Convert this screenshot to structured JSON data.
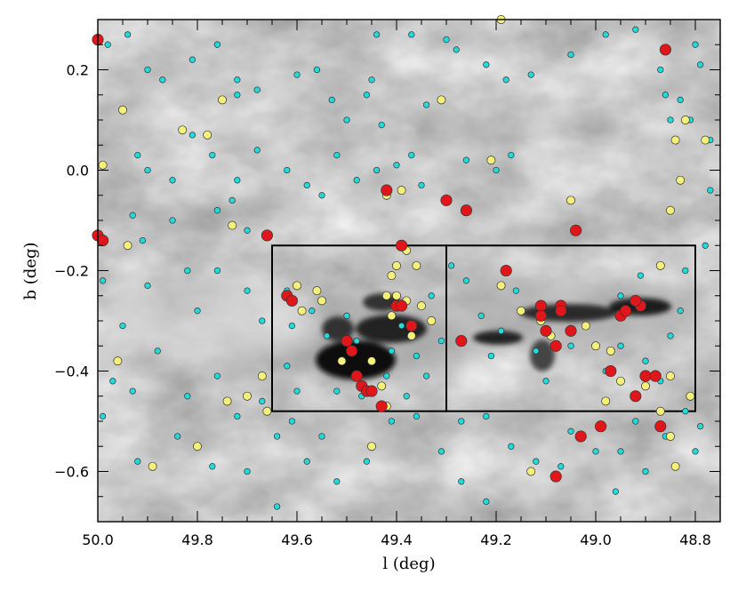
{
  "chart_data": {
    "type": "scatter",
    "title": "",
    "xlabel": "l (deg)",
    "ylabel": "b (deg)",
    "xlim": [
      50.0,
      48.75
    ],
    "ylim": [
      -0.7,
      0.3
    ],
    "x_ticks": [
      50.0,
      49.8,
      49.6,
      49.4,
      49.2,
      49.0,
      48.8
    ],
    "x_tick_labels": [
      "50.0",
      "49.8",
      "49.6",
      "49.4",
      "49.2",
      "49.0",
      "48.8"
    ],
    "y_ticks": [
      0.2,
      0.0,
      -0.2,
      -0.4,
      -0.6
    ],
    "y_tick_labels": [
      "0.2",
      "0.0",
      "−0.2",
      "−0.4",
      "−0.6"
    ],
    "background": "greyscale dust emission map",
    "boxes": [
      {
        "l_min": 49.3,
        "l_max": 49.65,
        "b_min": -0.48,
        "b_max": -0.15
      },
      {
        "l_min": 48.8,
        "l_max": 49.3,
        "b_min": -0.48,
        "b_max": -0.15
      }
    ],
    "series": [
      {
        "name": "cyan sources",
        "color": "#22dada",
        "size": "small",
        "points": [
          [
            49.98,
            0.25
          ],
          [
            49.94,
            0.27
          ],
          [
            49.9,
            0.2
          ],
          [
            49.87,
            0.18
          ],
          [
            49.81,
            0.22
          ],
          [
            49.76,
            0.25
          ],
          [
            49.72,
            0.18
          ],
          [
            49.68,
            0.16
          ],
          [
            49.72,
            0.15
          ],
          [
            49.6,
            0.19
          ],
          [
            49.56,
            0.2
          ],
          [
            49.53,
            0.14
          ],
          [
            49.44,
            0.27
          ],
          [
            49.45,
            0.18
          ],
          [
            49.46,
            0.15
          ],
          [
            49.5,
            0.1
          ],
          [
            49.43,
            0.09
          ],
          [
            49.34,
            0.13
          ],
          [
            49.37,
            0.27
          ],
          [
            49.3,
            0.26
          ],
          [
            49.28,
            0.24
          ],
          [
            49.22,
            0.21
          ],
          [
            49.18,
            0.18
          ],
          [
            49.13,
            0.19
          ],
          [
            49.05,
            0.23
          ],
          [
            48.98,
            0.27
          ],
          [
            48.92,
            0.28
          ],
          [
            48.87,
            0.2
          ],
          [
            48.86,
            0.15
          ],
          [
            48.83,
            0.14
          ],
          [
            48.8,
            0.25
          ],
          [
            48.79,
            0.21
          ],
          [
            48.85,
            0.1
          ],
          [
            48.81,
            0.1
          ],
          [
            48.77,
            0.06
          ],
          [
            49.92,
            0.03
          ],
          [
            49.9,
            0.0
          ],
          [
            49.85,
            -0.02
          ],
          [
            49.81,
            0.07
          ],
          [
            49.77,
            0.03
          ],
          [
            49.72,
            -0.02
          ],
          [
            49.68,
            0.04
          ],
          [
            49.62,
            0.0
          ],
          [
            49.58,
            -0.03
          ],
          [
            49.55,
            -0.05
          ],
          [
            49.52,
            0.03
          ],
          [
            49.48,
            -0.02
          ],
          [
            49.44,
            0.0
          ],
          [
            49.4,
            0.01
          ],
          [
            49.37,
            0.03
          ],
          [
            49.35,
            -0.03
          ],
          [
            49.26,
            0.02
          ],
          [
            49.2,
            0.0
          ],
          [
            49.17,
            0.03
          ],
          [
            49.93,
            -0.09
          ],
          [
            49.91,
            -0.14
          ],
          [
            49.85,
            -0.1
          ],
          [
            49.76,
            -0.08
          ],
          [
            49.7,
            -0.12
          ],
          [
            49.66,
            -0.13
          ],
          [
            49.73,
            -0.06
          ],
          [
            49.99,
            -0.22
          ],
          [
            49.9,
            -0.23
          ],
          [
            49.82,
            -0.2
          ],
          [
            49.76,
            -0.2
          ],
          [
            49.7,
            -0.24
          ],
          [
            49.8,
            -0.28
          ],
          [
            49.67,
            -0.3
          ],
          [
            49.62,
            -0.24
          ],
          [
            49.95,
            -0.31
          ],
          [
            49.97,
            -0.42
          ],
          [
            49.99,
            -0.49
          ],
          [
            49.93,
            -0.44
          ],
          [
            49.88,
            -0.36
          ],
          [
            49.82,
            -0.45
          ],
          [
            49.76,
            -0.41
          ],
          [
            49.72,
            -0.49
          ],
          [
            49.67,
            -0.46
          ],
          [
            49.64,
            -0.53
          ],
          [
            49.61,
            -0.5
          ],
          [
            49.55,
            -0.53
          ],
          [
            49.58,
            -0.58
          ],
          [
            49.52,
            -0.62
          ],
          [
            49.46,
            -0.58
          ],
          [
            49.41,
            -0.5
          ],
          [
            49.36,
            -0.49
          ],
          [
            49.31,
            -0.56
          ],
          [
            49.27,
            -0.5
          ],
          [
            49.22,
            -0.49
          ],
          [
            49.17,
            -0.55
          ],
          [
            49.12,
            -0.58
          ],
          [
            49.07,
            -0.59
          ],
          [
            49.05,
            -0.52
          ],
          [
            49.0,
            -0.56
          ],
          [
            48.95,
            -0.56
          ],
          [
            48.92,
            -0.5
          ],
          [
            48.86,
            -0.53
          ],
          [
            48.82,
            -0.48
          ],
          [
            48.8,
            -0.56
          ],
          [
            48.79,
            -0.51
          ],
          [
            49.92,
            -0.58
          ],
          [
            49.84,
            -0.53
          ],
          [
            49.77,
            -0.59
          ],
          [
            49.7,
            -0.6
          ],
          [
            49.64,
            -0.67
          ],
          [
            49.27,
            -0.62
          ],
          [
            49.22,
            -0.66
          ],
          [
            48.96,
            -0.64
          ],
          [
            48.9,
            -0.6
          ],
          [
            49.61,
            -0.31
          ],
          [
            49.57,
            -0.28
          ],
          [
            49.54,
            -0.33
          ],
          [
            49.5,
            -0.29
          ],
          [
            49.48,
            -0.34
          ],
          [
            49.45,
            -0.38
          ],
          [
            49.41,
            -0.36
          ],
          [
            49.39,
            -0.31
          ],
          [
            49.36,
            -0.37
          ],
          [
            49.33,
            -0.25
          ],
          [
            49.31,
            -0.34
          ],
          [
            49.52,
            -0.44
          ],
          [
            49.47,
            -0.45
          ],
          [
            49.42,
            -0.41
          ],
          [
            49.38,
            -0.45
          ],
          [
            49.34,
            -0.41
          ],
          [
            49.6,
            -0.44
          ],
          [
            49.62,
            -0.39
          ],
          [
            49.29,
            -0.19
          ],
          [
            49.26,
            -0.22
          ],
          [
            49.23,
            -0.29
          ],
          [
            49.21,
            -0.37
          ],
          [
            49.19,
            -0.32
          ],
          [
            49.16,
            -0.24
          ],
          [
            49.12,
            -0.36
          ],
          [
            49.1,
            -0.42
          ],
          [
            49.05,
            -0.35
          ],
          [
            49.02,
            -0.31
          ],
          [
            48.98,
            -0.4
          ],
          [
            48.95,
            -0.35
          ],
          [
            48.9,
            -0.38
          ],
          [
            48.87,
            -0.42
          ],
          [
            48.85,
            -0.33
          ],
          [
            48.83,
            -0.28
          ],
          [
            48.82,
            -0.2
          ],
          [
            48.78,
            -0.15
          ],
          [
            48.77,
            -0.04
          ],
          [
            48.91,
            -0.21
          ],
          [
            48.95,
            -0.25
          ]
        ]
      },
      {
        "name": "yellow sources",
        "color": "#f5f07a",
        "size": "medium",
        "points": [
          [
            49.95,
            0.12
          ],
          [
            49.75,
            0.14
          ],
          [
            49.78,
            0.07
          ],
          [
            49.83,
            0.08
          ],
          [
            49.99,
            0.01
          ],
          [
            49.31,
            0.14
          ],
          [
            49.19,
            0.3
          ],
          [
            49.21,
            0.02
          ],
          [
            49.42,
            -0.05
          ],
          [
            49.39,
            -0.04
          ],
          [
            48.86,
            0.24
          ],
          [
            48.82,
            0.1
          ],
          [
            48.84,
            0.06
          ],
          [
            48.78,
            0.06
          ],
          [
            48.83,
            -0.02
          ],
          [
            49.05,
            -0.06
          ],
          [
            48.85,
            -0.08
          ],
          [
            49.94,
            -0.15
          ],
          [
            49.73,
            -0.11
          ],
          [
            49.96,
            -0.38
          ],
          [
            49.7,
            -0.45
          ],
          [
            49.74,
            -0.46
          ],
          [
            49.67,
            -0.41
          ],
          [
            49.66,
            -0.48
          ],
          [
            49.8,
            -0.55
          ],
          [
            49.89,
            -0.59
          ],
          [
            49.45,
            -0.55
          ],
          [
            49.42,
            -0.47
          ],
          [
            49.6,
            -0.23
          ],
          [
            49.56,
            -0.24
          ],
          [
            49.59,
            -0.28
          ],
          [
            49.55,
            -0.26
          ],
          [
            49.42,
            -0.25
          ],
          [
            49.4,
            -0.25
          ],
          [
            49.38,
            -0.26
          ],
          [
            49.35,
            -0.27
          ],
          [
            49.37,
            -0.33
          ],
          [
            49.33,
            -0.3
          ],
          [
            49.41,
            -0.29
          ],
          [
            49.4,
            -0.19
          ],
          [
            49.45,
            -0.38
          ],
          [
            49.43,
            -0.43
          ],
          [
            49.41,
            -0.21
          ],
          [
            49.51,
            -0.38
          ],
          [
            49.36,
            -0.19
          ],
          [
            49.38,
            -0.16
          ],
          [
            49.27,
            -0.34
          ],
          [
            49.19,
            -0.23
          ],
          [
            49.15,
            -0.28
          ],
          [
            49.11,
            -0.3
          ],
          [
            49.09,
            -0.33
          ],
          [
            49.02,
            -0.31
          ],
          [
            49.0,
            -0.35
          ],
          [
            48.97,
            -0.36
          ],
          [
            48.95,
            -0.42
          ],
          [
            48.98,
            -0.46
          ],
          [
            48.9,
            -0.43
          ],
          [
            48.85,
            -0.41
          ],
          [
            48.81,
            -0.45
          ],
          [
            48.87,
            -0.48
          ],
          [
            48.85,
            -0.53
          ],
          [
            48.84,
            -0.59
          ],
          [
            48.87,
            -0.19
          ],
          [
            49.13,
            -0.6
          ]
        ]
      },
      {
        "name": "red sources",
        "color": "#e0161a",
        "size": "large",
        "points": [
          [
            50.0,
            0.26
          ],
          [
            50.0,
            -0.13
          ],
          [
            49.99,
            -0.14
          ],
          [
            49.66,
            -0.13
          ],
          [
            49.42,
            -0.04
          ],
          [
            49.3,
            -0.06
          ],
          [
            49.26,
            -0.08
          ],
          [
            49.04,
            -0.12
          ],
          [
            48.86,
            0.24
          ],
          [
            49.39,
            -0.15
          ],
          [
            49.62,
            -0.25
          ],
          [
            49.61,
            -0.26
          ],
          [
            49.4,
            -0.27
          ],
          [
            49.39,
            -0.27
          ],
          [
            49.37,
            -0.31
          ],
          [
            49.5,
            -0.34
          ],
          [
            49.49,
            -0.36
          ],
          [
            49.48,
            -0.41
          ],
          [
            49.47,
            -0.43
          ],
          [
            49.46,
            -0.44
          ],
          [
            49.45,
            -0.44
          ],
          [
            49.43,
            -0.47
          ],
          [
            49.27,
            -0.34
          ],
          [
            49.18,
            -0.2
          ],
          [
            49.11,
            -0.27
          ],
          [
            49.11,
            -0.29
          ],
          [
            49.1,
            -0.32
          ],
          [
            49.07,
            -0.27
          ],
          [
            49.07,
            -0.28
          ],
          [
            49.05,
            -0.32
          ],
          [
            49.08,
            -0.35
          ],
          [
            48.95,
            -0.29
          ],
          [
            48.94,
            -0.28
          ],
          [
            48.91,
            -0.27
          ],
          [
            48.92,
            -0.26
          ],
          [
            48.97,
            -0.4
          ],
          [
            48.9,
            -0.41
          ],
          [
            48.88,
            -0.41
          ],
          [
            48.92,
            -0.45
          ],
          [
            49.03,
            -0.53
          ],
          [
            48.99,
            -0.51
          ],
          [
            48.87,
            -0.51
          ],
          [
            49.08,
            -0.61
          ]
        ]
      }
    ]
  }
}
